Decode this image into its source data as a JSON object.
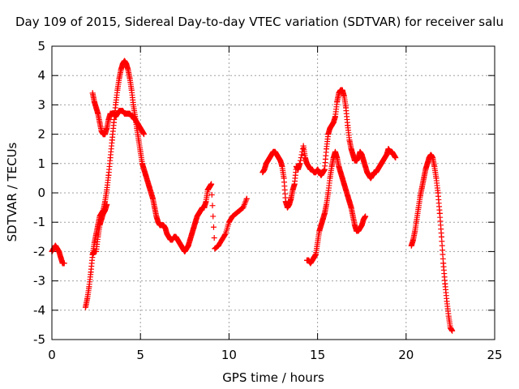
{
  "chart_data": {
    "type": "scatter",
    "title": "Day 109 of 2015, Sidereal Day-to-day VTEC variation (SDTVAR) for receiver salu",
    "xlabel": "GPS time / hours",
    "ylabel": "SDTVAR / TECUs",
    "xlim": [
      0,
      25
    ],
    "ylim": [
      -5,
      5
    ],
    "xticks": [
      0,
      5,
      10,
      15,
      20,
      25
    ],
    "yticks": [
      -5,
      -4,
      -3,
      -2,
      -1,
      0,
      1,
      2,
      3,
      4,
      5
    ],
    "grid": true,
    "marker": "plus",
    "color": "#ff0000",
    "series": [
      {
        "x": [
          0.0,
          0.1,
          0.2,
          0.3,
          0.4,
          0.5,
          0.6,
          0.7,
          1.9,
          2.0,
          2.1,
          2.2,
          2.3,
          2.4,
          2.5,
          2.6,
          2.7,
          2.8,
          2.9,
          3.0,
          3.1,
          3.2,
          3.3,
          3.4,
          3.5,
          3.6,
          3.7,
          3.8,
          3.9,
          4.0,
          4.1,
          4.2,
          4.3,
          4.4,
          4.5,
          4.6,
          4.7,
          4.8,
          4.9,
          5.0,
          5.1,
          5.2,
          5.3,
          5.4,
          5.5,
          5.6,
          5.7,
          5.8,
          5.9,
          6.0,
          6.1,
          6.2,
          6.3,
          6.4,
          6.5,
          6.6,
          6.7,
          6.8,
          6.9,
          7.0,
          7.1,
          7.2,
          7.3,
          7.4,
          7.5,
          7.6,
          7.7,
          7.8,
          7.9,
          8.0,
          8.1,
          8.2,
          8.3,
          8.4,
          8.5,
          8.6,
          8.7,
          8.8,
          8.9,
          9.0,
          9.2,
          9.4,
          9.6,
          9.8,
          10.0,
          10.2,
          10.4,
          10.6,
          10.8,
          11.0
        ],
        "y": [
          -2.0,
          -1.9,
          -1.8,
          -1.9,
          -2.0,
          -2.2,
          -2.4,
          -2.4,
          -3.9,
          -3.6,
          -3.2,
          -2.7,
          -2.1,
          -1.7,
          -1.4,
          -1.1,
          -0.8,
          -0.7,
          -0.6,
          -0.3,
          0.1,
          0.6,
          1.2,
          1.8,
          2.4,
          3.0,
          3.5,
          3.9,
          4.2,
          4.4,
          4.5,
          4.4,
          4.2,
          3.9,
          3.5,
          3.0,
          2.6,
          2.2,
          1.8,
          1.4,
          1.0,
          0.8,
          0.6,
          0.4,
          0.2,
          0.0,
          -0.2,
          -0.5,
          -0.8,
          -1.0,
          -1.1,
          -1.1,
          -1.1,
          -1.2,
          -1.4,
          -1.5,
          -1.6,
          -1.6,
          -1.5,
          -1.5,
          -1.6,
          -1.7,
          -1.8,
          -1.9,
          -2.0,
          -1.9,
          -1.8,
          -1.6,
          -1.4,
          -1.2,
          -1.0,
          -0.8,
          -0.7,
          -0.6,
          -0.5,
          -0.5,
          -0.3,
          0.1,
          0.2,
          0.3,
          -1.9,
          -1.8,
          -1.6,
          -1.4,
          -1.0,
          -0.8,
          -0.7,
          -0.6,
          -0.5,
          -0.2
        ]
      },
      {
        "x": [
          2.3,
          2.4,
          2.5,
          2.6,
          2.7,
          2.8,
          2.9,
          3.0,
          3.1,
          3.2,
          3.3,
          3.4,
          3.5,
          3.6,
          3.7,
          3.8,
          3.9,
          4.0,
          4.1,
          4.2,
          4.3,
          4.4,
          4.5,
          4.6,
          4.7,
          4.8,
          4.9,
          5.0,
          5.1,
          5.2,
          2.3,
          2.4,
          2.5,
          2.6,
          2.7,
          2.8,
          2.9,
          3.0,
          3.1
        ],
        "y": [
          3.4,
          3.1,
          2.9,
          2.7,
          2.4,
          2.1,
          2.0,
          2.0,
          2.2,
          2.5,
          2.7,
          2.7,
          2.7,
          2.6,
          2.7,
          2.8,
          2.8,
          2.8,
          2.7,
          2.7,
          2.7,
          2.7,
          2.6,
          2.6,
          2.5,
          2.4,
          2.3,
          2.2,
          2.1,
          2.0,
          -2.1,
          -2.0,
          -2.0,
          -1.5,
          -1.1,
          -0.9,
          -0.7,
          -0.6,
          -0.4
        ]
      },
      {
        "x": [
          11.9,
          12.0,
          12.1,
          12.2,
          12.3,
          12.4,
          12.5,
          12.6,
          12.7,
          12.8,
          12.9,
          13.0,
          13.1,
          13.2,
          13.3,
          13.4,
          13.5,
          13.6,
          13.7,
          13.8,
          13.9,
          14.0,
          14.2,
          14.3,
          14.4,
          14.5,
          14.6,
          14.7,
          14.8,
          14.9,
          15.0,
          15.1,
          15.2,
          15.3,
          15.4,
          15.5,
          15.6,
          15.7,
          15.8,
          15.9,
          16.0,
          16.1,
          16.2,
          16.3,
          16.4,
          16.5,
          16.6,
          16.7,
          16.8,
          16.9,
          17.0,
          17.1,
          17.2,
          17.3,
          17.4,
          17.5,
          17.6,
          17.7,
          17.8,
          17.9,
          18.0,
          18.1,
          18.2,
          18.3,
          18.4,
          18.5,
          18.6,
          18.7,
          18.8,
          18.9,
          19.0,
          19.1,
          19.2,
          19.3,
          19.4
        ],
        "y": [
          0.7,
          0.8,
          1.0,
          1.1,
          1.2,
          1.3,
          1.4,
          1.4,
          1.3,
          1.2,
          1.1,
          0.9,
          0.5,
          -0.3,
          -0.5,
          -0.4,
          -0.2,
          0.1,
          0.3,
          0.9,
          0.8,
          1.0,
          1.6,
          1.2,
          1.0,
          0.9,
          0.8,
          0.8,
          0.7,
          0.7,
          0.8,
          0.7,
          0.6,
          0.7,
          0.8,
          1.5,
          2.0,
          2.2,
          2.3,
          2.4,
          2.6,
          3.1,
          3.4,
          3.5,
          3.5,
          3.3,
          2.9,
          2.3,
          1.8,
          1.5,
          1.3,
          1.1,
          1.1,
          1.2,
          1.4,
          1.3,
          1.1,
          0.9,
          0.7,
          0.6,
          0.5,
          0.6,
          0.7,
          0.7,
          0.8,
          0.9,
          1.0,
          1.1,
          1.2,
          1.3,
          1.5,
          1.4,
          1.4,
          1.3,
          1.2
        ]
      },
      {
        "x": [
          14.4,
          14.5,
          14.6,
          14.7,
          14.8,
          14.9,
          15.0,
          15.1,
          15.2,
          15.3,
          15.4,
          15.5,
          15.6,
          15.7,
          15.8,
          15.9,
          16.0,
          16.1,
          16.2,
          16.3,
          16.4,
          16.5,
          16.6,
          16.7,
          16.8,
          16.9,
          17.0,
          17.1,
          17.2,
          17.3,
          17.4,
          17.5,
          17.6,
          17.7
        ],
        "y": [
          -2.3,
          -2.3,
          -2.4,
          -2.3,
          -2.2,
          -2.1,
          -1.7,
          -1.3,
          -1.1,
          -0.9,
          -0.7,
          -0.4,
          0.0,
          0.5,
          0.9,
          1.2,
          1.4,
          1.2,
          0.9,
          0.7,
          0.5,
          0.3,
          0.1,
          -0.1,
          -0.3,
          -0.5,
          -0.8,
          -1.1,
          -1.3,
          -1.3,
          -1.2,
          -1.1,
          -0.9,
          -0.8
        ]
      },
      {
        "x": [
          20.3,
          20.4,
          20.5,
          20.6,
          20.7,
          20.8,
          20.9,
          21.0,
          21.1,
          21.2,
          21.3,
          21.4,
          21.5,
          21.6,
          21.7,
          21.8,
          21.9,
          22.0,
          22.1,
          22.2,
          22.3,
          22.4,
          22.5,
          22.6
        ],
        "y": [
          -1.8,
          -1.6,
          -1.3,
          -0.9,
          -0.5,
          -0.1,
          0.2,
          0.5,
          0.8,
          1.0,
          1.2,
          1.3,
          1.2,
          0.9,
          0.5,
          0.0,
          -0.7,
          -1.5,
          -2.4,
          -3.1,
          -3.7,
          -4.2,
          -4.6,
          -4.7
        ]
      }
    ]
  }
}
